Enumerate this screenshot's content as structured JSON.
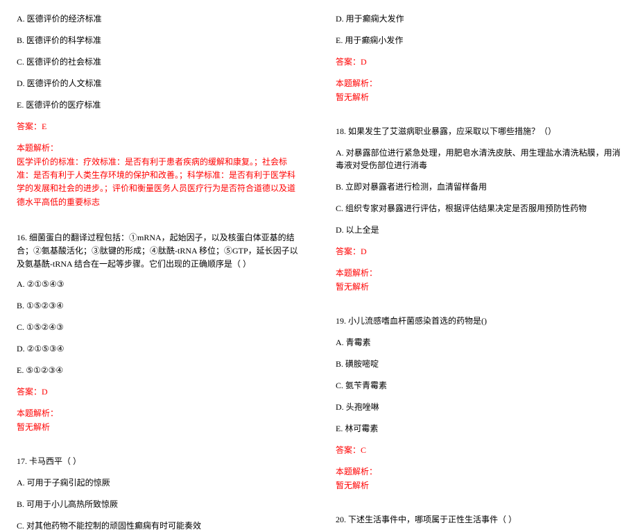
{
  "colors": {
    "text": "#000000",
    "answer": "#ff0000",
    "background": "#ffffff"
  },
  "typography": {
    "font_family": "SimSun",
    "font_size_pt": 9
  },
  "left": {
    "q_prev_options": {
      "A": "A. 医德评价的经济标准",
      "B": "B. 医德评价的科学标准",
      "C": "C. 医德评价的社会标准",
      "D": "D. 医德评价的人文标准",
      "E": "E. 医德评价的医疗标准"
    },
    "q_prev_answer": "答案：E",
    "q_prev_analysis_label": "本题解析：",
    "q_prev_analysis_text": "医学评价的标准：疗效标准：是否有利于患者疾病的缓解和康复。；社会标准：是否有利于人类生存环境的保护和改善。；科学标准：是否有利于医学科学的发展和社会的进步。；评价和衡量医务人员医疗行为是否符合道德以及道德水平高低的重要标志",
    "q16_stem": "16. 细菌蛋白的翻译过程包括：①mRNA，起始因子，以及核蛋白体亚基的结合；②氨基酸活化；③肽键的形成；④肽酰-tRNA 移位；⑤GTP，延长因子以及氨基酰-tRNA 结合在一起等步骤。它们出现的正确顺序是（    ）",
    "q16_options": {
      "A": "A. ②①⑤④③",
      "B": "B. ①⑤②③④",
      "C": "C. ①⑤②④③",
      "D": "D. ②①⑤③④",
      "E": "E. ⑤①②③④"
    },
    "q16_answer": "答案：D",
    "q16_analysis_label": "本题解析：",
    "q16_analysis_text": "暂无解析",
    "q17_stem": "17. 卡马西平（  ）",
    "q17_options": {
      "A": "A. 可用于子痫引起的惊厥",
      "B": "B. 可用于小儿高热所致惊厥",
      "C": "C. 对其他药物不能控制的顽固性癫痫有时可能奏效"
    }
  },
  "right": {
    "q17_options_cont": {
      "D": "D. 用于癫痫大发作",
      "E": "E. 用于癫痫小发作"
    },
    "q17_answer": "答案：D",
    "q17_analysis_label": "本题解析：",
    "q17_analysis_text": "暂无解析",
    "q18_stem": "18. 如果发生了艾滋病职业暴露，应采取以下哪些措施？（）",
    "q18_options": {
      "A": "A. 对暴露部位进行紧急处理，用肥皂水清洗皮肤、用生理盐水清洗粘膜，用消毒液对受伤部位进行消毒",
      "B": "B. 立即对暴露者进行检测，血清留样备用",
      "C": "C. 组织专家对暴露进行评估，根据评估结果决定是否服用预防性药物",
      "D": "D. 以上全是"
    },
    "q18_answer": "答案：D",
    "q18_analysis_label": "本题解析：",
    "q18_analysis_text": "暂无解析",
    "q19_stem": "19. 小儿流感嗜血杆菌感染首选的药物是()",
    "q19_options": {
      "A": "A. 青霉素",
      "B": "B. 磺胺嘧啶",
      "C": "C. 氨苄青霉素",
      "D": "D. 头孢唑啉",
      "E": "E. 林可霉素"
    },
    "q19_answer": "答案：C",
    "q19_analysis_label": "本题解析：",
    "q19_analysis_text": "暂无解析",
    "q20_stem": "20. 下述生活事件中，哪项属于正性生活事件（    ）"
  }
}
